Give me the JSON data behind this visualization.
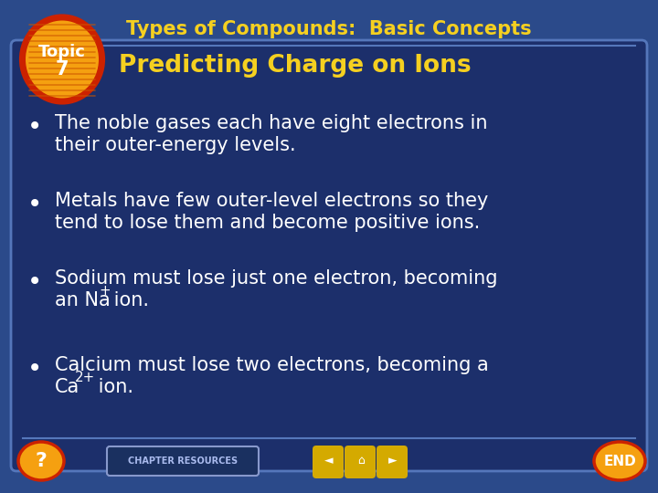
{
  "title": "Types of Compounds:  Basic Concepts",
  "subtitle": "Predicting Charge on Ions",
  "topic_line1": "Topic",
  "topic_line2": "7",
  "bg_color": "#1c2f6b",
  "outer_bg": "#2b4a8a",
  "title_color": "#f5d020",
  "subtitle_color": "#f5d020",
  "text_color": "#ffffff",
  "topic_circle_red": "#cc2200",
  "topic_circle_orange": "#f5a010",
  "title_fontsize": 15,
  "subtitle_fontsize": 19,
  "bullet_fontsize": 15,
  "topic_fontsize": 13,
  "bottom_bar_color": "#1c2f6b",
  "chapter_res_bg": "#1a3060",
  "chapter_res_border": "#8899cc",
  "nav_button_color": "#d4aa00",
  "bullet1_line1": "The noble gases each have eight electrons in",
  "bullet1_line2": "their outer-energy levels.",
  "bullet2_line1": "Metals have few outer-level electrons so they",
  "bullet2_line2": "tend to lose them and become positive ions.",
  "bullet3_line1": "Sodium must lose just one electron, becoming",
  "bullet3_line2a": "an Na",
  "bullet3_sup": "+",
  "bullet3_line2b": " ion.",
  "bullet4_line1": "Calcium must lose two electrons, becoming a",
  "bullet4_line2a": "Ca",
  "bullet4_sup": "2+",
  "bullet4_line2b": " ion."
}
